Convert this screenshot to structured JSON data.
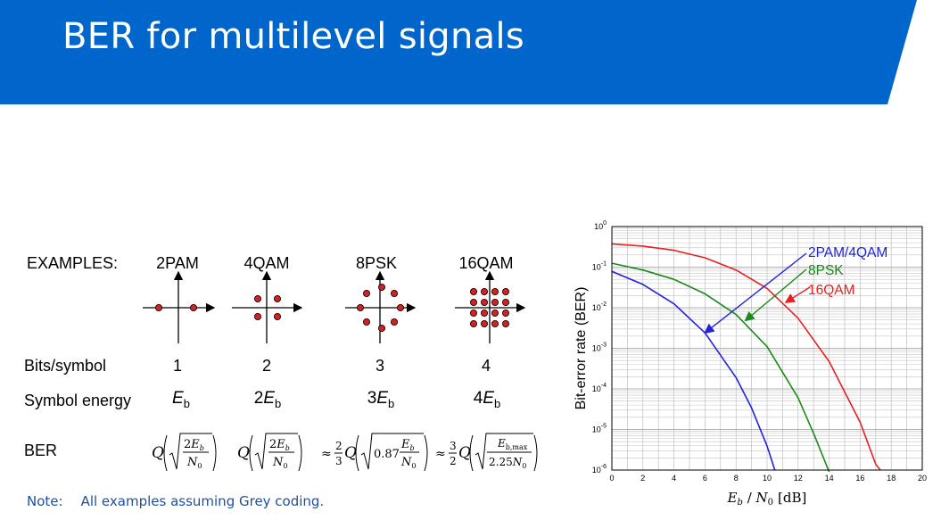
{
  "slide": {
    "title": "BER for multilevel signals",
    "banner_color": "#0066cc",
    "note_prefix": "Note:",
    "note_text": "All examples assuming Grey coding."
  },
  "table": {
    "examples_label": "EXAMPLES:",
    "columns": [
      "2PAM",
      "4QAM",
      "8PSK",
      "16QAM"
    ],
    "rows": {
      "bits_label": "Bits/symbol",
      "bits": [
        "1",
        "2",
        "3",
        "4"
      ],
      "energy_label": "Symbol energy",
      "energy": [
        {
          "coef": "",
          "sym": "E",
          "sub": "b"
        },
        {
          "coef": "2",
          "sym": "E",
          "sub": "b"
        },
        {
          "coef": "3",
          "sym": "E",
          "sub": "b"
        },
        {
          "coef": "4",
          "sym": "E",
          "sub": "b"
        }
      ],
      "ber_label": "BER"
    },
    "formulas": {
      "q": "Q",
      "approx": "≈",
      "two": "2",
      "three": "3",
      "coef_087": "0.87",
      "coef_225": "2.25",
      "eb": "E",
      "eb_sub": "b",
      "n0": "N",
      "n0_sub": "0",
      "ebmax_sub": "b,max"
    },
    "point_color": "#d32020"
  },
  "chart_data": {
    "type": "line",
    "ylabel": "Bit-error rate (BER)",
    "xlabel_sym_e": "E",
    "xlabel_sub_b": "b",
    "xlabel_sep": " / ",
    "xlabel_sym_n": "N",
    "xlabel_sub_0": "0",
    "xlabel_unit": "[dB]",
    "yscale": "log",
    "xlim": [
      0,
      20
    ],
    "ylim_exp": [
      -6,
      0
    ],
    "xticks": [
      "0",
      "2",
      "4",
      "6",
      "8",
      "10",
      "12",
      "14",
      "16",
      "18",
      "20"
    ],
    "yticks": [
      {
        "base": "10",
        "exp": "0"
      },
      {
        "base": "10",
        "exp": "-1"
      },
      {
        "base": "10",
        "exp": "-2"
      },
      {
        "base": "10",
        "exp": "-3"
      },
      {
        "base": "10",
        "exp": "-4"
      },
      {
        "base": "10",
        "exp": "-5"
      },
      {
        "base": "10",
        "exp": "-6"
      }
    ],
    "grid": true,
    "series": [
      {
        "name": "2PAM/4QAM",
        "color": "#2222dd",
        "x": [
          0,
          2,
          4,
          6,
          8,
          9,
          10,
          10.5
        ],
        "y": [
          0.0786,
          0.0375,
          0.0125,
          0.0024,
          0.00019,
          3.4e-05,
          3.9e-06,
          1e-06
        ]
      },
      {
        "name": "8PSK",
        "color": "#1a8a1a",
        "x": [
          0,
          2,
          4,
          6,
          8,
          10,
          12,
          13,
          14
        ],
        "y": [
          0.125,
          0.085,
          0.05,
          0.022,
          0.0068,
          0.0011,
          6e-05,
          8e-06,
          9e-07
        ]
      },
      {
        "name": "16QAM",
        "color": "#e82020",
        "x": [
          0,
          2,
          4,
          6,
          8,
          10,
          12,
          14,
          16,
          17,
          17.3
        ],
        "y": [
          0.375,
          0.33,
          0.26,
          0.17,
          0.085,
          0.03,
          0.0055,
          0.00047,
          1.5e-05,
          1.4e-06,
          1e-06
        ]
      }
    ],
    "annotations": [
      {
        "text": "2PAM/4QAM",
        "color": "#2222dd",
        "point_x": 6.0,
        "point_y": 0.0024
      },
      {
        "text": "8PSK",
        "color": "#1a8a1a",
        "point_x": 8.6,
        "point_y": 0.0048
      },
      {
        "text": "16QAM",
        "color": "#e82020",
        "point_x": 11.2,
        "point_y": 0.0135
      }
    ]
  }
}
